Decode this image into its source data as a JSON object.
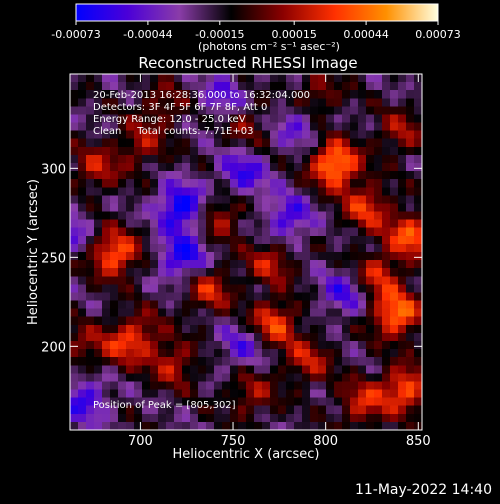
{
  "chart_data": {
    "type": "heatmap",
    "title": "Reconstructed RHESSI Image",
    "xlabel": "Heliocentric X (arcsec)",
    "ylabel": "Heliocentric Y (arcsec)",
    "xlim": [
      662,
      852
    ],
    "ylim": [
      153,
      353
    ],
    "x_ticks": [
      "700",
      "750",
      "800",
      "850"
    ],
    "x_tick_values": [
      700,
      750,
      800,
      850
    ],
    "y_ticks": [
      "200",
      "250",
      "300"
    ],
    "y_tick_values": [
      200,
      250,
      300
    ],
    "colorbar": {
      "ticks": [
        "-0.00073",
        "-0.00044",
        "-0.00015",
        "0.00015",
        "0.00044",
        "0.00073"
      ],
      "tick_values": [
        -0.00073,
        -0.00044,
        -0.00015,
        0.00015,
        0.00044,
        0.00073
      ],
      "range": [
        -0.00073,
        0.00073
      ],
      "unit_label": "(photons cm⁻² s⁻¹ asec⁻²)",
      "colors": [
        "#0000ff",
        "#4b00d8",
        "#8a3ca8",
        "#000000",
        "#8b0000",
        "#ff3000",
        "#ff9000",
        "#ffffe0"
      ]
    },
    "annotations": [
      "20-Feb-2013 16:28:36.000 to 16:32:04.000",
      "Detectors: 3F 4F 5F 6F 7F 8F, Att 0",
      "Energy Range: 12.0 - 25.0 keV",
      "Clean     Total counts: 7.71E+03"
    ],
    "peak_label": "Position of Peak = [805,302]",
    "peak": [
      805,
      302
    ],
    "sources": [
      {
        "x": 805,
        "y": 302,
        "value": 0.00073
      },
      {
        "x": 822,
        "y": 278,
        "value": 0.00045
      },
      {
        "x": 846,
        "y": 262,
        "value": 0.00055
      },
      {
        "x": 686,
        "y": 252,
        "value": 0.0006
      },
      {
        "x": 676,
        "y": 300,
        "value": 0.00035
      },
      {
        "x": 700,
        "y": 313,
        "value": 0.0003
      },
      {
        "x": 743,
        "y": 273,
        "value": 0.00035
      },
      {
        "x": 737,
        "y": 232,
        "value": 0.0004
      },
      {
        "x": 770,
        "y": 247,
        "value": 0.00035
      },
      {
        "x": 772,
        "y": 213,
        "value": 0.0005
      },
      {
        "x": 790,
        "y": 192,
        "value": 0.00035
      },
      {
        "x": 838,
        "y": 218,
        "value": 0.00065
      },
      {
        "x": 843,
        "y": 176,
        "value": 0.00055
      },
      {
        "x": 820,
        "y": 168,
        "value": 0.0004
      },
      {
        "x": 700,
        "y": 207,
        "value": 0.0003
      },
      {
        "x": 718,
        "y": 190,
        "value": 0.00035
      },
      {
        "x": 690,
        "y": 200,
        "value": 0.0003
      },
      {
        "x": 828,
        "y": 240,
        "value": 0.0004
      },
      {
        "x": 840,
        "y": 320,
        "value": 0.0003
      },
      {
        "x": 760,
        "y": 173,
        "value": 0.0003
      },
      {
        "x": 668,
        "y": 200,
        "value": 0.00025
      },
      {
        "x": 795,
        "y": 340,
        "value": 0.0003
      },
      {
        "x": 712,
        "y": 335,
        "value": 0.00025
      },
      {
        "x": 757,
        "y": 325,
        "value": 0.00025
      },
      {
        "x": 722,
        "y": 278,
        "value": -0.0006
      },
      {
        "x": 723,
        "y": 250,
        "value": -0.0005
      },
      {
        "x": 780,
        "y": 272,
        "value": -0.0004
      },
      {
        "x": 755,
        "y": 297,
        "value": -0.0004
      },
      {
        "x": 670,
        "y": 170,
        "value": -0.0004
      },
      {
        "x": 785,
        "y": 325,
        "value": -0.0003
      },
      {
        "x": 755,
        "y": 200,
        "value": -0.0003
      },
      {
        "x": 660,
        "y": 265,
        "value": -0.0003
      },
      {
        "x": 745,
        "y": 340,
        "value": -0.0003
      },
      {
        "x": 810,
        "y": 230,
        "value": -0.00035
      }
    ]
  },
  "footer": {
    "date": "11-May-2022 14:40"
  }
}
